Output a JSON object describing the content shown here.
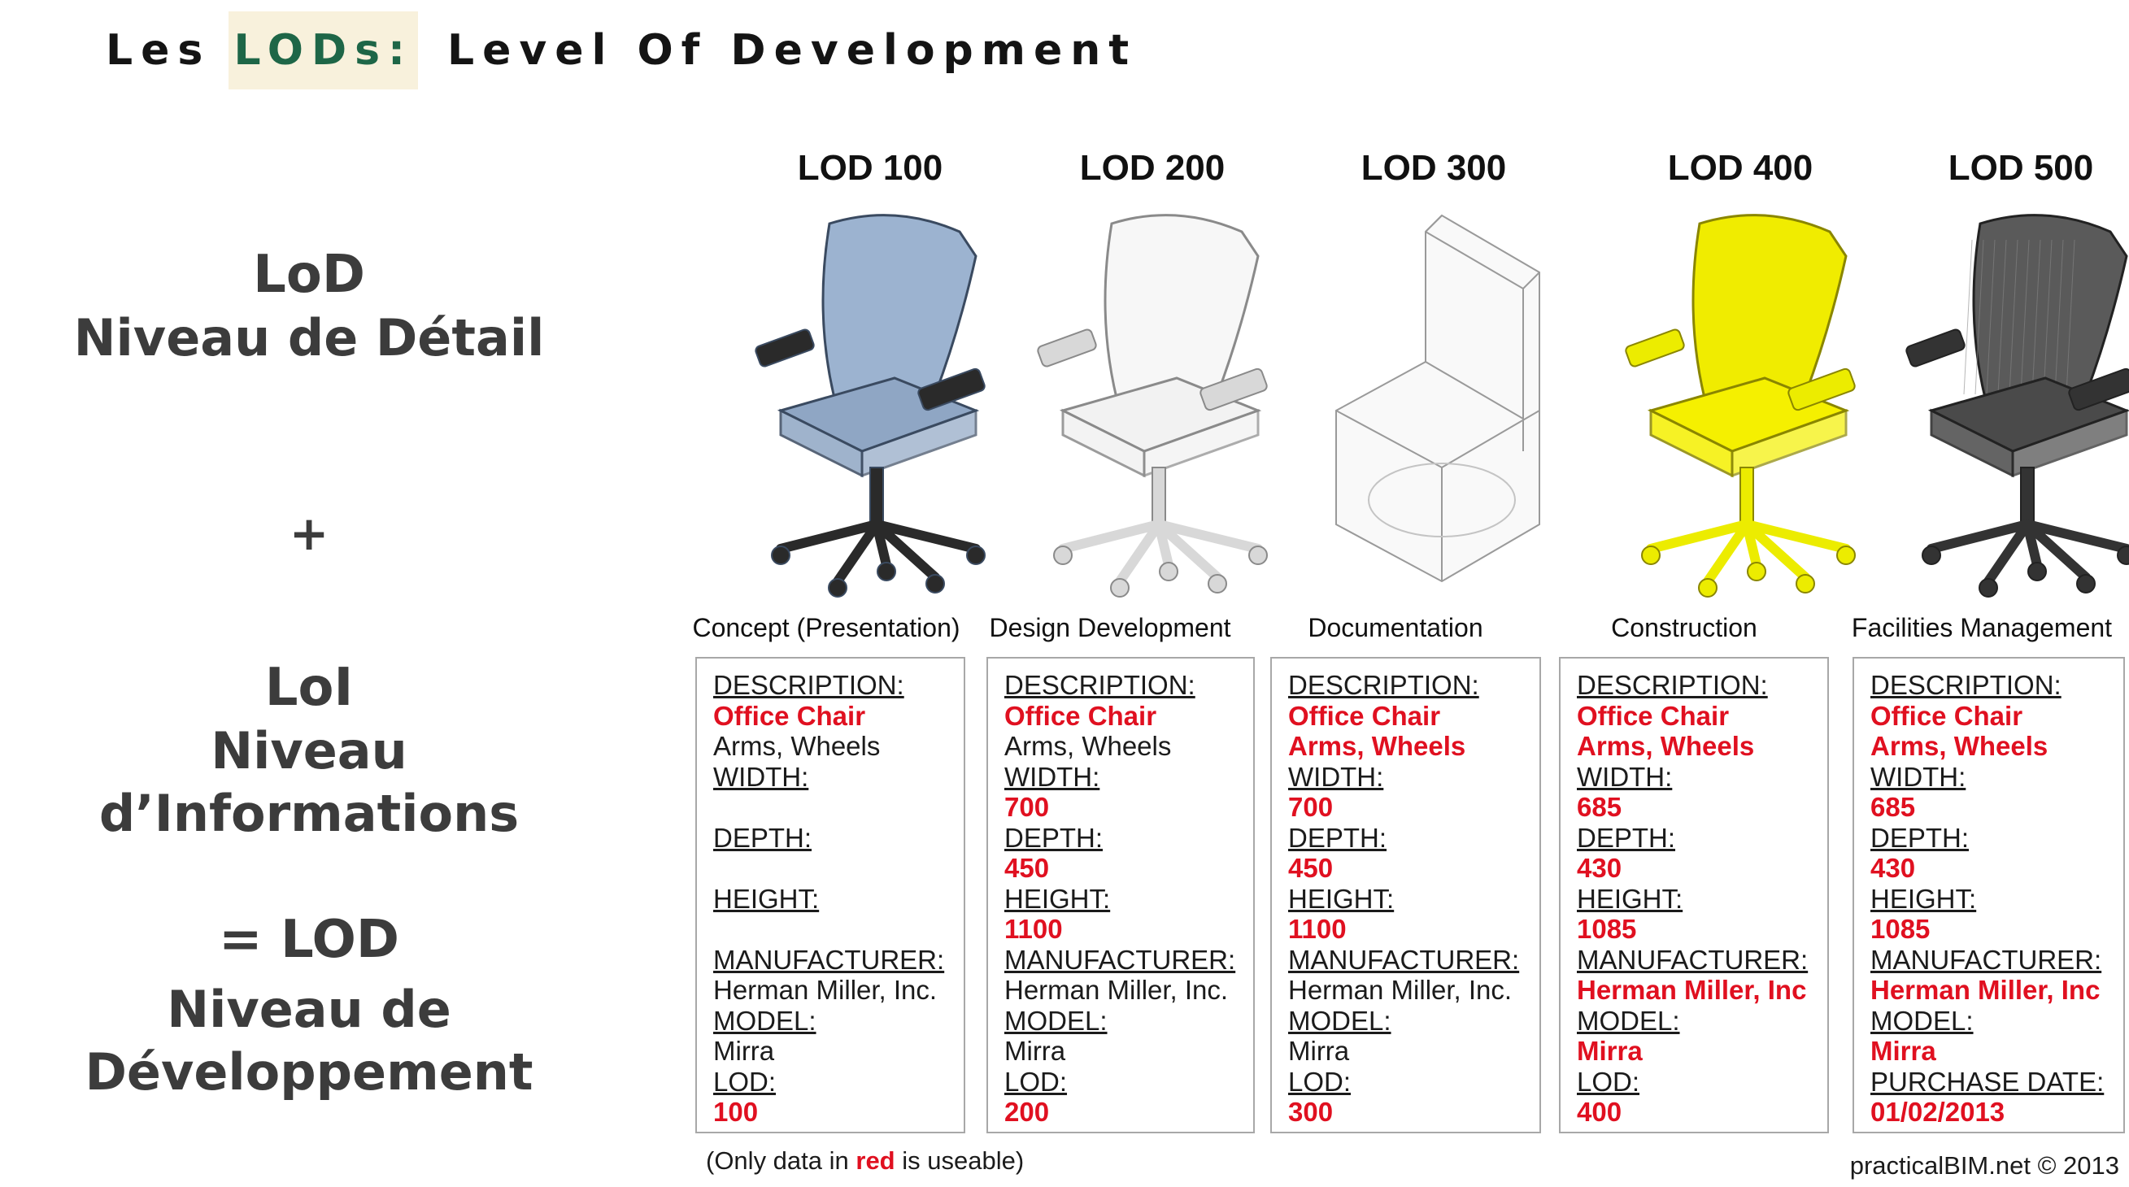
{
  "title": {
    "prefix": "Les ",
    "highlight": "LODs:",
    "rest": " Level Of Development"
  },
  "left": {
    "lod": "LoD",
    "lod_sub": "Niveau de Détail",
    "plus": "+",
    "loi": "LoI",
    "loi_sub": "Niveau d’Informations",
    "eq": "= LOD",
    "eq_sub1": "Niveau de",
    "eq_sub2": "Développement"
  },
  "colors": {
    "accent_green": "#1e6647",
    "highlight_bg": "#f8f1dc",
    "data_red": "#e01020"
  },
  "columns": [
    {
      "head": "LOD 100",
      "phase": "Concept (Presentation)",
      "chair_icon": "office-chair-blue-icon",
      "rows": [
        {
          "t": "DESCRIPTION:",
          "k": "lbl"
        },
        {
          "t": "Office Chair",
          "k": "red"
        },
        {
          "t": "Arms, Wheels",
          "k": "val"
        },
        {
          "t": "WIDTH:",
          "k": "lbl"
        },
        {
          "t": "",
          "k": "val"
        },
        {
          "t": "DEPTH:",
          "k": "lbl"
        },
        {
          "t": "",
          "k": "val"
        },
        {
          "t": "HEIGHT:",
          "k": "lbl"
        },
        {
          "t": "",
          "k": "val"
        },
        {
          "t": "MANUFACTURER:",
          "k": "lbl"
        },
        {
          "t": "Herman Miller, Inc.",
          "k": "val"
        },
        {
          "t": "MODEL:",
          "k": "lbl"
        },
        {
          "t": "Mirra",
          "k": "val"
        },
        {
          "t": "LOD:",
          "k": "lbl"
        },
        {
          "t": "100",
          "k": "red"
        }
      ]
    },
    {
      "head": "LOD 200",
      "phase": "Design Development",
      "chair_icon": "office-chair-white-icon",
      "rows": [
        {
          "t": "DESCRIPTION:",
          "k": "lbl"
        },
        {
          "t": "Office Chair",
          "k": "red"
        },
        {
          "t": "Arms, Wheels",
          "k": "val"
        },
        {
          "t": "WIDTH:",
          "k": "lbl"
        },
        {
          "t": "700",
          "k": "red"
        },
        {
          "t": "DEPTH:",
          "k": "lbl"
        },
        {
          "t": "450",
          "k": "red"
        },
        {
          "t": "HEIGHT:",
          "k": "lbl"
        },
        {
          "t": "1100",
          "k": "red"
        },
        {
          "t": "MANUFACTURER:",
          "k": "lbl"
        },
        {
          "t": "Herman Miller, Inc.",
          "k": "val"
        },
        {
          "t": "MODEL:",
          "k": "lbl"
        },
        {
          "t": "Mirra",
          "k": "val"
        },
        {
          "t": "LOD:",
          "k": "lbl"
        },
        {
          "t": "200",
          "k": "red"
        }
      ]
    },
    {
      "head": "LOD 300",
      "phase": "Documentation",
      "chair_icon": "office-chair-wireframe-icon",
      "rows": [
        {
          "t": "DESCRIPTION:",
          "k": "lbl"
        },
        {
          "t": "Office Chair",
          "k": "red"
        },
        {
          "t": "Arms, Wheels",
          "k": "red"
        },
        {
          "t": "WIDTH:",
          "k": "lbl"
        },
        {
          "t": "700",
          "k": "red"
        },
        {
          "t": "DEPTH:",
          "k": "lbl"
        },
        {
          "t": "450",
          "k": "red"
        },
        {
          "t": "HEIGHT:",
          "k": "lbl"
        },
        {
          "t": "1100",
          "k": "red"
        },
        {
          "t": "MANUFACTURER:",
          "k": "lbl"
        },
        {
          "t": "Herman Miller, Inc.",
          "k": "val"
        },
        {
          "t": "MODEL:",
          "k": "lbl"
        },
        {
          "t": "Mirra",
          "k": "val"
        },
        {
          "t": "LOD:",
          "k": "lbl"
        },
        {
          "t": "300",
          "k": "red"
        }
      ]
    },
    {
      "head": "LOD 400",
      "phase": "Construction",
      "chair_icon": "office-chair-yellow-icon",
      "rows": [
        {
          "t": "DESCRIPTION:",
          "k": "lbl"
        },
        {
          "t": "Office Chair",
          "k": "red"
        },
        {
          "t": "Arms, Wheels",
          "k": "red"
        },
        {
          "t": "WIDTH:",
          "k": "lbl"
        },
        {
          "t": "685",
          "k": "red"
        },
        {
          "t": "DEPTH:",
          "k": "lbl"
        },
        {
          "t": "430",
          "k": "red"
        },
        {
          "t": "HEIGHT:",
          "k": "lbl"
        },
        {
          "t": "1085",
          "k": "red"
        },
        {
          "t": "MANUFACTURER:",
          "k": "lbl"
        },
        {
          "t": "Herman Miller, Inc",
          "k": "red"
        },
        {
          "t": "MODEL:",
          "k": "lbl"
        },
        {
          "t": "Mirra",
          "k": "red"
        },
        {
          "t": "LOD:",
          "k": "lbl"
        },
        {
          "t": "400",
          "k": "red"
        }
      ]
    },
    {
      "head": "LOD 500",
      "phase": "Facilities Management",
      "chair_icon": "office-chair-mesh-icon",
      "rows": [
        {
          "t": "DESCRIPTION:",
          "k": "lbl"
        },
        {
          "t": "Office Chair",
          "k": "red"
        },
        {
          "t": "Arms, Wheels",
          "k": "red"
        },
        {
          "t": "WIDTH:",
          "k": "lbl"
        },
        {
          "t": "685",
          "k": "red"
        },
        {
          "t": "DEPTH:",
          "k": "lbl"
        },
        {
          "t": "430",
          "k": "red"
        },
        {
          "t": "HEIGHT:",
          "k": "lbl"
        },
        {
          "t": "1085",
          "k": "red"
        },
        {
          "t": "MANUFACTURER:",
          "k": "lbl"
        },
        {
          "t": "Herman Miller, Inc",
          "k": "red"
        },
        {
          "t": "MODEL:",
          "k": "lbl"
        },
        {
          "t": "Mirra",
          "k": "red"
        },
        {
          "t": "PURCHASE DATE:",
          "k": "lbl"
        },
        {
          "t": "01/02/2013",
          "k": "red"
        }
      ]
    }
  ],
  "footnote": {
    "before": "(Only data in ",
    "red": "red",
    "after": " is useable)"
  },
  "credit": "practicalBIM.net © 2013"
}
